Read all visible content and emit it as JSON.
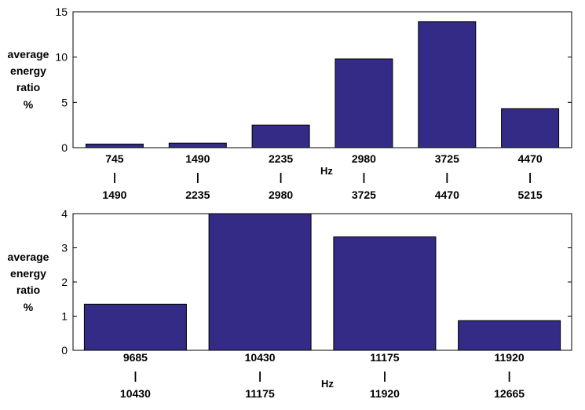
{
  "colors": {
    "bar_fill": "#332b85",
    "bar_stroke": "#000000",
    "axis": "#000000"
  },
  "chart_data": [
    {
      "type": "bar",
      "ylabel": [
        "average",
        "energy",
        "ratio",
        "%"
      ],
      "xlabel": "Hz",
      "ylim": [
        0,
        15
      ],
      "yticks": [
        "0",
        "5",
        "10",
        "15"
      ],
      "categories": [
        {
          "low": "745",
          "sep": "|",
          "high": "1490"
        },
        {
          "low": "1490",
          "sep": "|",
          "high": "2235"
        },
        {
          "low": "2235",
          "sep": "|",
          "high": "2980"
        },
        {
          "low": "2980",
          "sep": "|",
          "high": "3725"
        },
        {
          "low": "3725",
          "sep": "|",
          "high": "4470"
        },
        {
          "low": "4470",
          "sep": "|",
          "high": "5215"
        }
      ],
      "values": [
        0.4,
        0.5,
        2.5,
        9.8,
        13.9,
        4.3
      ],
      "grid": false,
      "legend": "none"
    },
    {
      "type": "bar",
      "ylabel": [
        "average",
        "energy",
        "ratio",
        "%"
      ],
      "xlabel": "Hz",
      "ylim": [
        0,
        4
      ],
      "yticks": [
        "0",
        "1",
        "2",
        "3",
        "4"
      ],
      "categories": [
        {
          "low": "9685",
          "sep": "|",
          "high": "10430"
        },
        {
          "low": "10430",
          "sep": "|",
          "high": "11175"
        },
        {
          "low": "11175",
          "sep": "|",
          "high": "11920"
        },
        {
          "low": "11920",
          "sep": "|",
          "high": "12665"
        }
      ],
      "values": [
        1.35,
        4.0,
        3.32,
        0.87
      ],
      "grid": false,
      "legend": "none"
    }
  ]
}
